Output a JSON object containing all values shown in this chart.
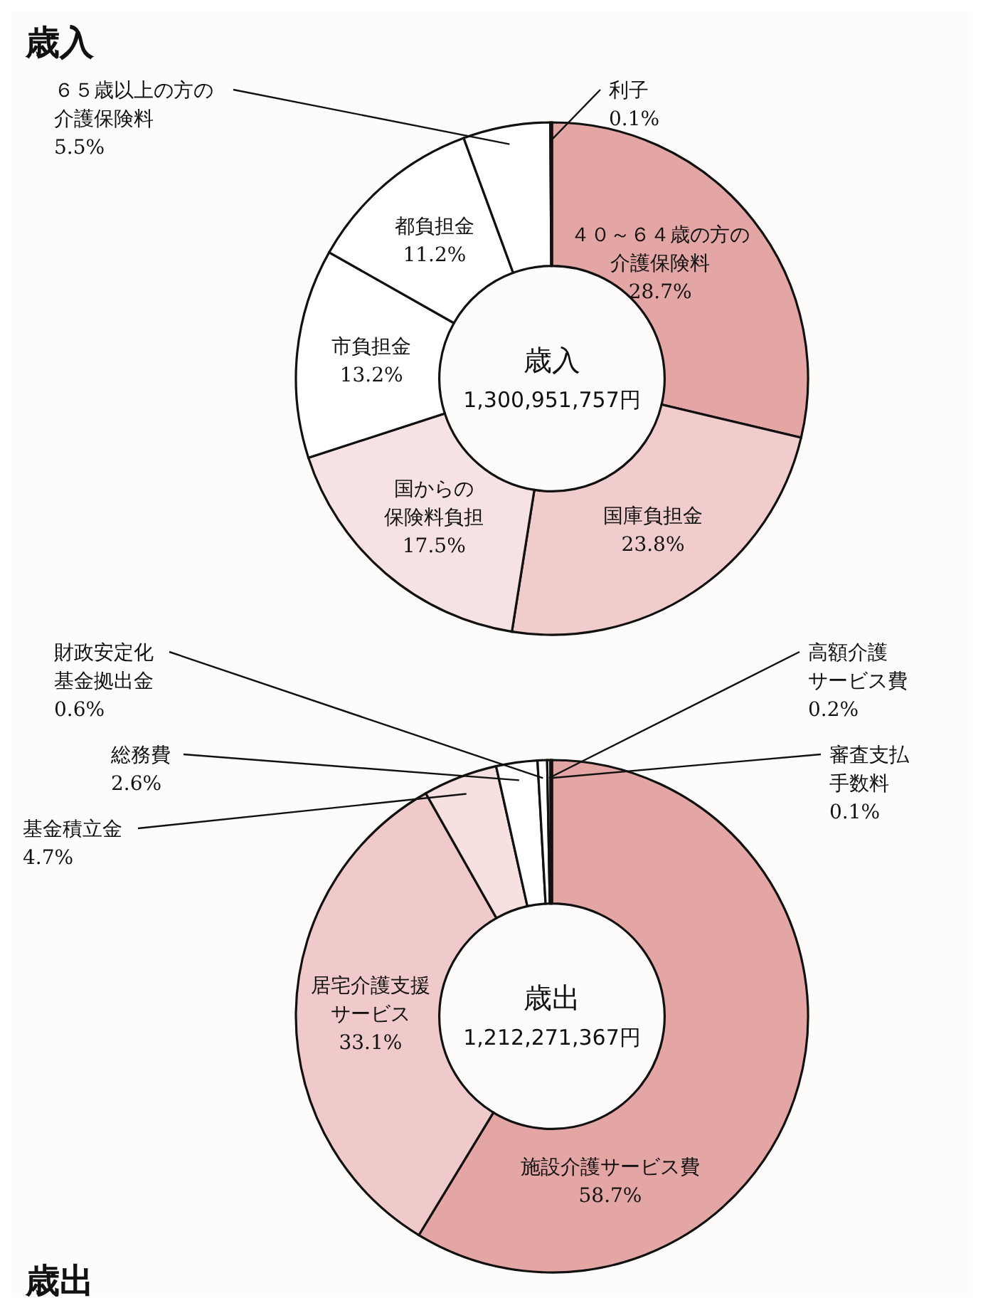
{
  "chart_data": [
    {
      "type": "donut",
      "title": "歳入",
      "categories": [
        "４０～６４歳の方の介護保険料",
        "国庫負担金",
        "国からの保険料負担",
        "市負担金",
        "都負担金",
        "６５歳以上の方の介護保険料",
        "利子"
      ],
      "values": [
        28.7,
        23.8,
        17.5,
        13.2,
        11.2,
        5.5,
        0.1
      ],
      "value_labels": [
        "28.7%",
        "23.8%",
        "17.5%",
        "13.2%",
        "11.2%",
        "5.5%",
        "0.1%"
      ],
      "colors": [
        "#e4a5a5",
        "#f0cccc",
        "#f6e2e2",
        "#ffffff",
        "#ffffff",
        "#ffffff",
        "#ffffff"
      ],
      "annotations": [
        "歳入",
        "1,300,951,757円"
      ]
    },
    {
      "type": "donut",
      "title": "歳出",
      "categories": [
        "施設介護サービス費",
        "居宅介護支援サービス",
        "基金積立金",
        "総務費",
        "財政安定化基金拠出金",
        "高額介護サービス費",
        "審査支払手数料"
      ],
      "values": [
        58.7,
        33.1,
        4.7,
        2.6,
        0.6,
        0.2,
        0.1
      ],
      "value_labels": [
        "58.7%",
        "33.1%",
        "4.7%",
        "2.6%",
        "0.6%",
        "0.2%",
        "0.1%"
      ],
      "colors": [
        "#e4a5a5",
        "#f0caca",
        "#f6e0e0",
        "#ffffff",
        "#ffffff",
        "#ffffff",
        "#ffffff"
      ],
      "annotations": [
        "歳出",
        "1,212,271,367円"
      ]
    }
  ]
}
